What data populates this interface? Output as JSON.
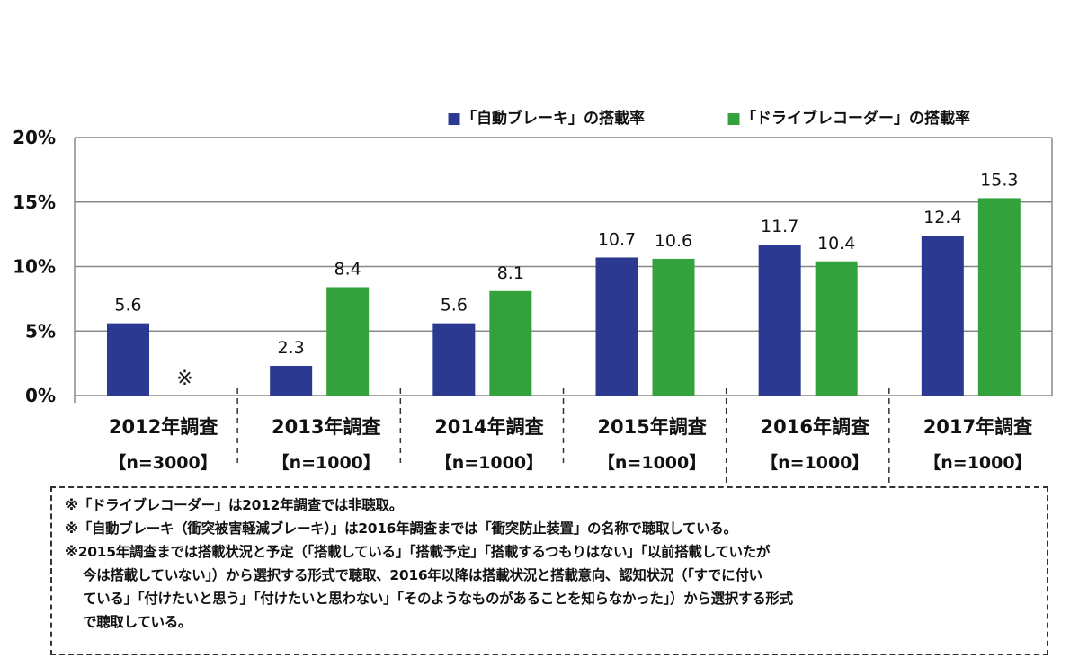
{
  "chart_data": {
    "type": "bar",
    "categories": [
      "2012年調査",
      "2013年調査",
      "2014年調査",
      "2015年調査",
      "2016年調査",
      "2017年調査"
    ],
    "category_sublabels": [
      "【n=3000】",
      "【n=1000】",
      "【n=1000】",
      "【n=1000】",
      "【n=1000】",
      "【n=1000】"
    ],
    "series": [
      {
        "name": "■「自動ブレーキ」の搭載率",
        "color": "#2b3990",
        "values": [
          5.6,
          2.3,
          5.6,
          10.7,
          11.7,
          12.4
        ],
        "labels": [
          "5.6",
          "2.3",
          "5.6",
          "10.7",
          "11.7",
          "12.4"
        ]
      },
      {
        "name": "■「ドライブレコーダー」の搭載率",
        "color": "#33a23d",
        "values": [
          null,
          8.4,
          8.1,
          10.6,
          10.4,
          15.3
        ],
        "labels": [
          "※",
          "8.4",
          "8.1",
          "10.6",
          "10.4",
          "15.3"
        ]
      }
    ],
    "ylim": [
      0,
      20
    ],
    "yticks": [
      0,
      5,
      10,
      15,
      20
    ],
    "ytick_labels": [
      "0%",
      "5%",
      "10%",
      "15%",
      "20%"
    ],
    "grid": true,
    "legend": "top-right",
    "title": "",
    "xlabel": "",
    "ylabel": ""
  },
  "notes": [
    "※「ドライブレコーダー」は2012年調査では非聴取。",
    "※「自動ブレーキ（衝突被害軽減ブレーキ）」は2016年調査までは「衝突防止装置」の名称で聴取している。",
    "※2015年調査までは搭載状況と予定（「搭載している」「搭載予定」「搭載するつもりはない」「以前搭載していたが",
    "今は搭載していない」）から選択する形式で聴取、2016年以降は搭載状況と搭載意向、認知状況（「すでに付い",
    "ている」「付けたいと思う」「付けたいと思わない」「そのようなものがあることを知らなかった」）から選択する形式",
    "で聴取している。"
  ]
}
